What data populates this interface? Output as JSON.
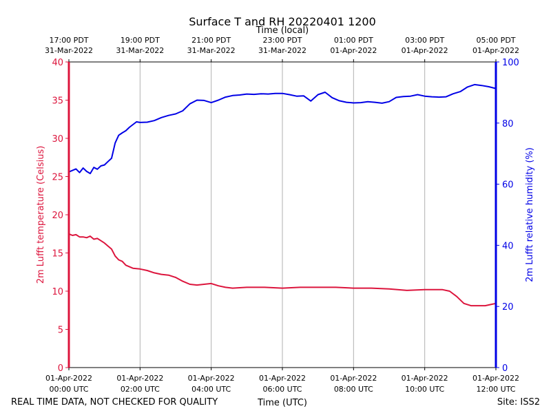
{
  "chart_data": {
    "type": "line",
    "title": "Surface T and RH 20220401 1200",
    "top_axis_label": "Time (local)",
    "xlabel": "Time (UTC)",
    "ylabel_left": "2m Lufft temperature (Celsius)",
    "ylabel_right": "2m Lufft relative humidity (%)",
    "footer_left": "REAL TIME DATA, NOT CHECKED FOR QUALITY",
    "footer_right": "Site: ISS2",
    "xlim_hours": [
      0,
      12
    ],
    "ylim_left": [
      0,
      40
    ],
    "ylim_right": [
      0,
      100
    ],
    "left_ticks": [
      "0",
      "5",
      "10",
      "15",
      "20",
      "25",
      "30",
      "35",
      "40"
    ],
    "right_ticks": [
      "0",
      "20",
      "40",
      "60",
      "80",
      "100"
    ],
    "bottom_ticks": [
      {
        "line1": "01-Apr-2022",
        "line2": "00:00 UTC"
      },
      {
        "line1": "01-Apr-2022",
        "line2": "02:00 UTC"
      },
      {
        "line1": "01-Apr-2022",
        "line2": "04:00 UTC"
      },
      {
        "line1": "01-Apr-2022",
        "line2": "06:00 UTC"
      },
      {
        "line1": "01-Apr-2022",
        "line2": "08:00 UTC"
      },
      {
        "line1": "01-Apr-2022",
        "line2": "10:00 UTC"
      },
      {
        "line1": "01-Apr-2022",
        "line2": "12:00 UTC"
      }
    ],
    "top_ticks": [
      {
        "line1": "17:00 PDT",
        "line2": "31-Mar-2022"
      },
      {
        "line1": "19:00 PDT",
        "line2": "31-Mar-2022"
      },
      {
        "line1": "21:00 PDT",
        "line2": "31-Mar-2022"
      },
      {
        "line1": "23:00 PDT",
        "line2": "31-Mar-2022"
      },
      {
        "line1": "01:00 PDT",
        "line2": "01-Apr-2022"
      },
      {
        "line1": "03:00 PDT",
        "line2": "01-Apr-2022"
      },
      {
        "line1": "05:00 PDT",
        "line2": "01-Apr-2022"
      }
    ],
    "colors": {
      "temperature": "#dc143c",
      "humidity": "#0000e6",
      "grid": "#b0b0b0"
    },
    "series": [
      {
        "name": "2m Lufft temperature",
        "axis": "left",
        "x": [
          0,
          0.1,
          0.2,
          0.3,
          0.4,
          0.5,
          0.6,
          0.7,
          0.8,
          0.9,
          1.0,
          1.1,
          1.2,
          1.3,
          1.4,
          1.5,
          1.6,
          1.8,
          2.0,
          2.2,
          2.4,
          2.6,
          2.8,
          3.0,
          3.2,
          3.4,
          3.6,
          3.8,
          4.0,
          4.2,
          4.4,
          4.6,
          5.0,
          5.5,
          6.0,
          6.5,
          7.0,
          7.5,
          8.0,
          8.5,
          9.0,
          9.5,
          10.0,
          10.5,
          10.7,
          10.9,
          11.1,
          11.3,
          11.5,
          11.7,
          11.9,
          12.0
        ],
        "y": [
          17.5,
          17.3,
          17.4,
          17.1,
          17.1,
          17.0,
          17.2,
          16.8,
          16.9,
          16.6,
          16.3,
          15.9,
          15.5,
          14.6,
          14.1,
          13.9,
          13.4,
          13.0,
          12.9,
          12.7,
          12.4,
          12.2,
          12.1,
          11.8,
          11.3,
          10.9,
          10.8,
          10.9,
          11.0,
          10.7,
          10.5,
          10.4,
          10.5,
          10.5,
          10.4,
          10.5,
          10.5,
          10.5,
          10.4,
          10.4,
          10.3,
          10.1,
          10.2,
          10.2,
          10.0,
          9.3,
          8.4,
          8.1,
          8.1,
          8.1,
          8.3,
          8.4
        ]
      },
      {
        "name": "2m Lufft relative humidity",
        "axis": "right",
        "x": [
          0,
          0.1,
          0.2,
          0.3,
          0.4,
          0.5,
          0.6,
          0.7,
          0.8,
          0.9,
          1.0,
          1.1,
          1.2,
          1.3,
          1.4,
          1.5,
          1.6,
          1.7,
          1.8,
          1.9,
          2.0,
          2.2,
          2.4,
          2.6,
          2.8,
          3.0,
          3.2,
          3.4,
          3.6,
          3.8,
          4.0,
          4.2,
          4.4,
          4.6,
          4.8,
          5.0,
          5.2,
          5.4,
          5.6,
          5.8,
          6.0,
          6.2,
          6.4,
          6.6,
          6.8,
          7.0,
          7.2,
          7.4,
          7.6,
          7.8,
          8.0,
          8.2,
          8.4,
          8.6,
          8.8,
          9.0,
          9.2,
          9.4,
          9.6,
          9.8,
          10.0,
          10.2,
          10.4,
          10.6,
          10.8,
          11.0,
          11.2,
          11.4,
          11.6,
          11.8,
          12.0
        ],
        "y": [
          64,
          64.5,
          65,
          63.8,
          65.3,
          64.2,
          63.5,
          65.5,
          64.9,
          66.0,
          66.3,
          67.4,
          68.5,
          73.5,
          76.0,
          76.8,
          77.5,
          78.6,
          79.5,
          80.4,
          80.2,
          80.3,
          80.8,
          81.8,
          82.5,
          83.0,
          84.0,
          86.3,
          87.5,
          87.4,
          86.7,
          87.5,
          88.5,
          89.0,
          89.2,
          89.5,
          89.4,
          89.6,
          89.5,
          89.7,
          89.7,
          89.3,
          88.8,
          88.9,
          87.2,
          89.3,
          90.1,
          88.3,
          87.3,
          86.8,
          86.6,
          86.7,
          87.0,
          86.8,
          86.5,
          87.0,
          88.4,
          88.7,
          88.8,
          89.3,
          88.8,
          88.6,
          88.5,
          88.6,
          89.6,
          90.3,
          91.8,
          92.6,
          92.3,
          91.9,
          91.3
        ]
      }
    ]
  }
}
